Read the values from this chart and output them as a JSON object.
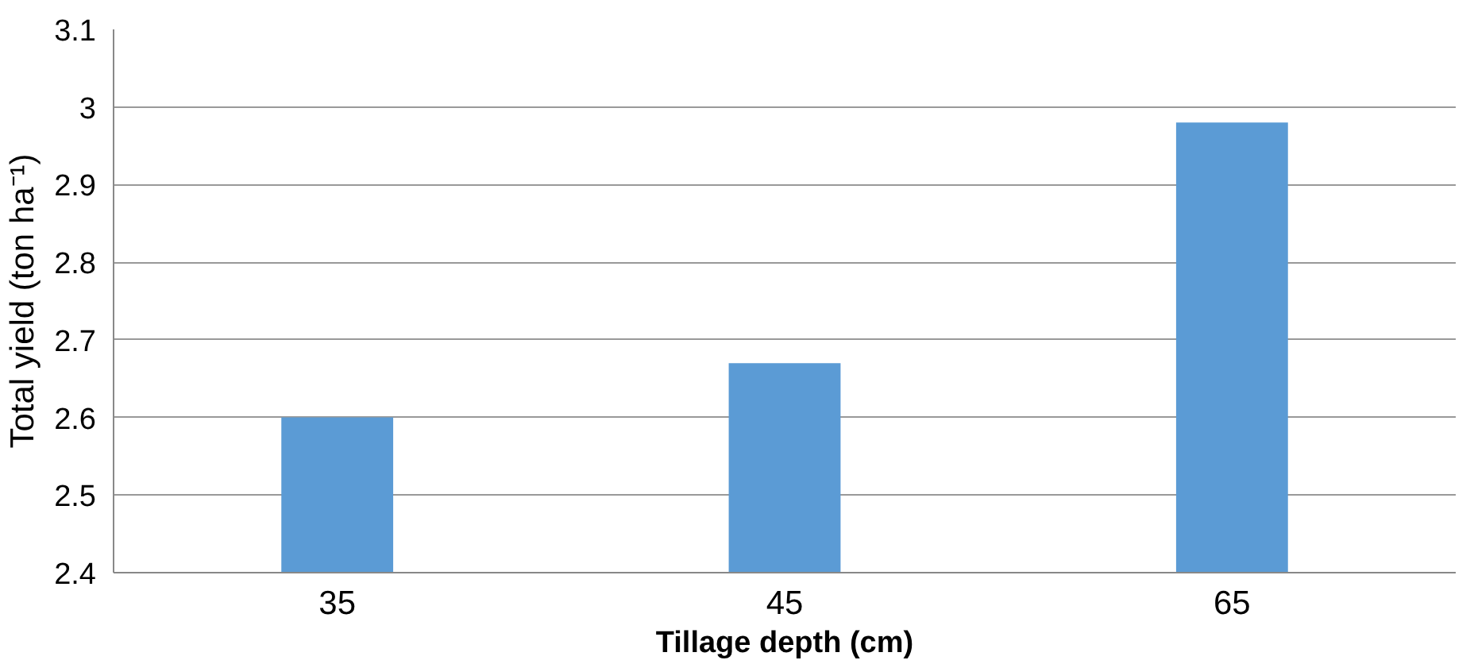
{
  "chart_data": {
    "type": "bar",
    "xlabel": "Tillage depth (cm)",
    "ylabel": "Total yield (ton ha⁻¹)",
    "categories": [
      "35",
      "45",
      "65"
    ],
    "values": [
      2.6,
      2.67,
      2.98
    ],
    "color": "#5b9bd5",
    "ylim": [
      2.4,
      3.1
    ],
    "yticks": [
      2.4,
      2.5,
      2.6,
      2.7,
      2.8,
      2.9,
      3,
      3.1
    ],
    "grid": "y"
  }
}
